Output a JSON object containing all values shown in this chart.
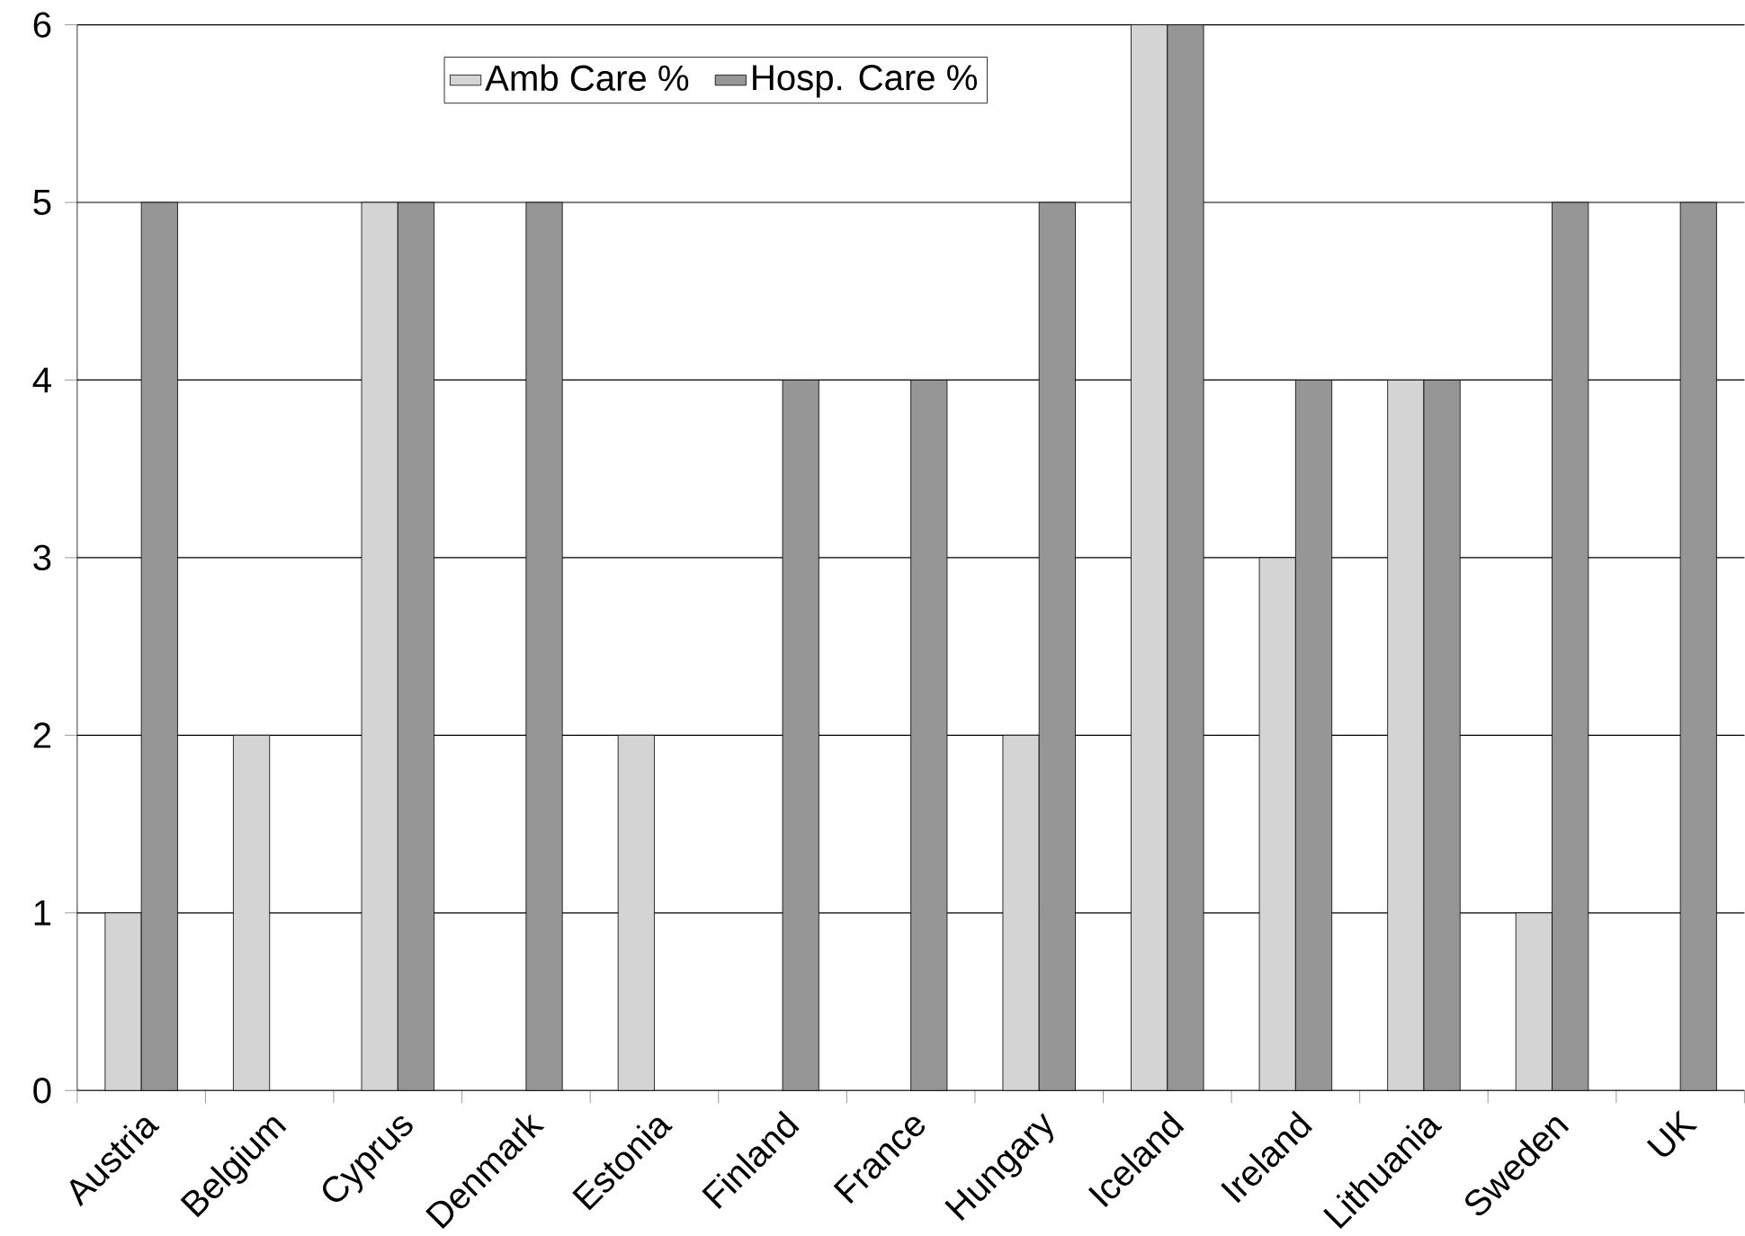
{
  "chart_data": {
    "type": "bar",
    "categories": [
      "Austria",
      "Belgium",
      "Cyprus",
      "Denmark",
      "Estonia",
      "Finland",
      "France",
      "Hungary",
      "Iceland",
      "Ireland",
      "Lithuania",
      "Sweden",
      "UK"
    ],
    "series": [
      {
        "name": "Amb Care %",
        "color": "#d4d4d4",
        "values": [
          1,
          2,
          5,
          null,
          2,
          null,
          null,
          2,
          6,
          3,
          4,
          1,
          null
        ]
      },
      {
        "name": "Hosp. Care %",
        "color": "#969696",
        "values": [
          5,
          null,
          5,
          5,
          null,
          4,
          4,
          5,
          6,
          4,
          4,
          5,
          5
        ]
      }
    ],
    "ylim": [
      0,
      6
    ],
    "yticks": [
      0,
      1,
      2,
      3,
      4,
      5,
      6
    ],
    "grid": "y",
    "legend": "top"
  }
}
